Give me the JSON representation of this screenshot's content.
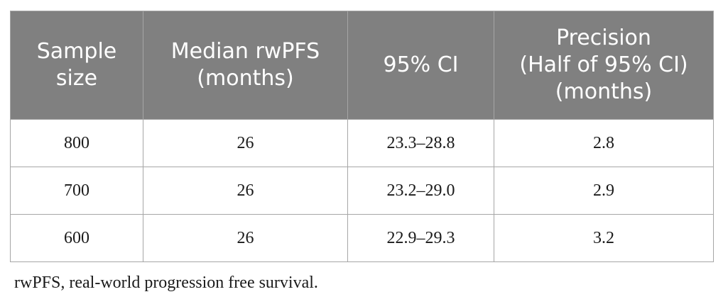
{
  "table": {
    "headers": [
      [
        "Sample",
        "size"
      ],
      [
        "Median rwPFS",
        "(months)"
      ],
      [
        "95% CI"
      ],
      [
        "Precision",
        "(Half of 95% CI)",
        "(months)"
      ]
    ],
    "rows": [
      [
        "800",
        "26",
        "23.3–28.8",
        "2.8"
      ],
      [
        "700",
        "26",
        "23.2–29.0",
        "2.9"
      ],
      [
        "600",
        "26",
        "22.9–29.3",
        "3.2"
      ]
    ]
  },
  "footnote": "rwPFS, real-world progression free survival."
}
